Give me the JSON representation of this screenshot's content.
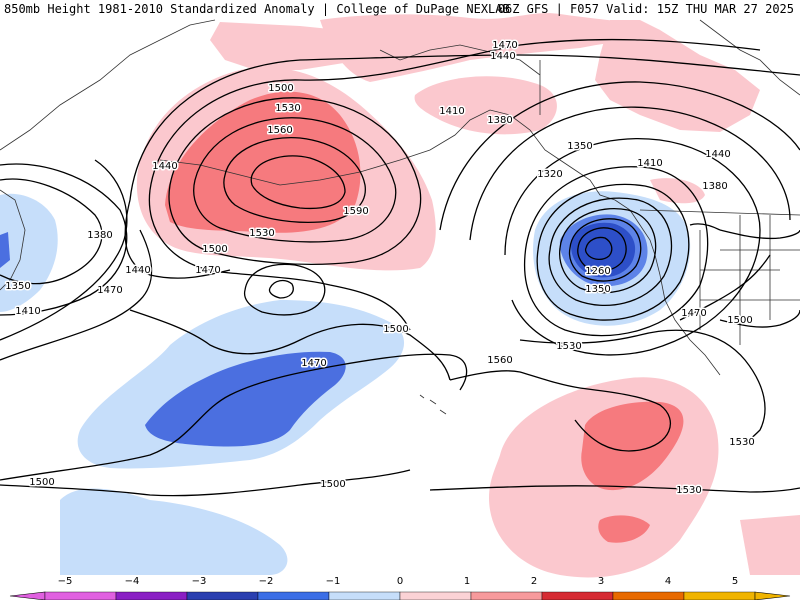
{
  "header": {
    "left": "850mb Height 1981-2010 Standardized Anomaly | College of DuPage NEXLAB",
    "right": "06Z GFS | F057 Valid: 15Z THU MAR 27 2025"
  },
  "contour_labels": [
    "1470",
    "1440",
    "1410",
    "1380",
    "1350",
    "1320",
    "1260",
    "1350",
    "1410",
    "1440",
    "1380",
    "1500",
    "1530",
    "1560",
    "1590",
    "1440",
    "1500",
    "1530",
    "1470",
    "1440",
    "1470",
    "1380",
    "1350",
    "1410",
    "1500",
    "1470",
    "1560",
    "1530",
    "1470",
    "1500",
    "1530",
    "1500",
    "1500",
    "1530"
  ],
  "colorbar": {
    "ticks": [
      "−5",
      "−4",
      "−3",
      "−2",
      "−1",
      "0",
      "1",
      "2",
      "3",
      "4",
      "5"
    ],
    "colors": [
      "#e060e0",
      "#8a1fc4",
      "#2a3fb0",
      "#3b6ee6",
      "#c6defa",
      "#ffffff",
      "#fbd2d5",
      "#f79a9c",
      "#d62b33",
      "#e86a00",
      "#f0b400"
    ]
  },
  "anomaly_colors": {
    "light_positive": "#fbc8ce",
    "medium_positive": "#f67a7e",
    "light_negative": "#c6defa",
    "medium_negative": "#4b6fe0",
    "strong_negative": "#2d4fc8"
  }
}
